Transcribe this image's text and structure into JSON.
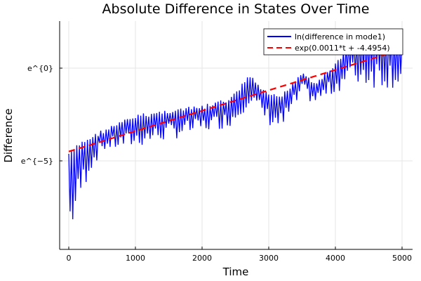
{
  "chart_data": {
    "type": "line",
    "title": "Absolute Difference in States Over Time",
    "xlabel": "Time",
    "ylabel": "Difference",
    "xlim": [
      -150,
      5150
    ],
    "ylim_log": [
      -9.8,
      2.5
    ],
    "x_ticks": [
      0,
      1000,
      2000,
      3000,
      4000,
      5000
    ],
    "x_tick_labels": [
      "0",
      "1000",
      "2000",
      "3000",
      "4000",
      "5000"
    ],
    "y_ticks": [
      0,
      -5
    ],
    "y_tick_labels": [
      "e^{0}",
      "e^{−5}"
    ],
    "grid": true,
    "legend_position": "top-right",
    "series": [
      {
        "name": "ln(difference in mode1)",
        "color": "#0000ff",
        "style": "solid",
        "oscillation_period": 40,
        "envelope": {
          "t": [
            0,
            100,
            200,
            300,
            500,
            1000,
            1500,
            2000,
            2400,
            2500,
            2700,
            3000,
            3200,
            3500,
            3700,
            4000,
            4200,
            4500,
            4800,
            5000
          ],
          "upper": [
            -4.5,
            -4.2,
            -3.9,
            -3.7,
            -3.3,
            -2.5,
            -2.2,
            -2.0,
            -1.6,
            -1.3,
            -0.3,
            -1.4,
            -1.4,
            -0.1,
            -0.7,
            0.3,
            1.4,
            2.2,
            2.0,
            1.8
          ],
          "lower": [
            -9.4,
            -8.3,
            -6.9,
            -5.8,
            -4.5,
            -4.3,
            -3.9,
            -3.5,
            -3.2,
            -3.0,
            -2.0,
            -3.1,
            -3.5,
            -1.6,
            -2.0,
            -1.4,
            -0.9,
            -1.1,
            -1.1,
            -1.1
          ]
        }
      },
      {
        "name": "exp(0.0011*t + -4.4954)",
        "color": "#ff0000",
        "style": "dashed",
        "slope": 0.0011,
        "intercept": -4.4954
      }
    ]
  }
}
